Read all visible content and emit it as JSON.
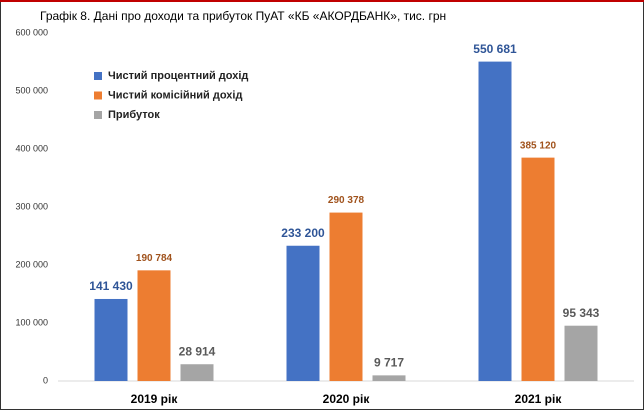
{
  "chart_data": {
    "type": "bar",
    "title": "Графік 8. Дані про доходи та прибуток ПуАТ «КБ «АКОРДБАНК», тис. грн",
    "categories": [
      "2019 рік",
      "2020 рік",
      "2021 рік"
    ],
    "series": [
      {
        "name": "Чистий процентний дохід",
        "color": "#4472c4",
        "label_color": "#2f5597",
        "values": [
          141430,
          233200,
          550681
        ],
        "value_labels": [
          "141 430",
          "233 200",
          "550 681"
        ]
      },
      {
        "name": "Чистий комісійний дохід",
        "color": "#ed7d31",
        "label_color": "#a0521c",
        "values": [
          190784,
          290378,
          385120
        ],
        "value_labels": [
          "190 784",
          "290 378",
          "385 120"
        ]
      },
      {
        "name": "Прибуток",
        "color": "#a5a5a5",
        "label_color": "#595959",
        "values": [
          28914,
          9717,
          95343
        ],
        "value_labels": [
          "28 914",
          "9 717",
          "95 343"
        ]
      }
    ],
    "ylim": [
      0,
      600000
    ],
    "yticks": [
      0,
      {
        "value": 100000,
        "label": "100 000"
      },
      {
        "value": 200000,
        "label": "200 000"
      },
      {
        "value": 300000,
        "label": "300 000"
      },
      {
        "value": 400000,
        "label": "400 000"
      },
      {
        "value": 500000,
        "label": "500 000"
      },
      {
        "value": 600000,
        "label": "600 000"
      }
    ],
    "grid": false,
    "legend": "top-left"
  }
}
